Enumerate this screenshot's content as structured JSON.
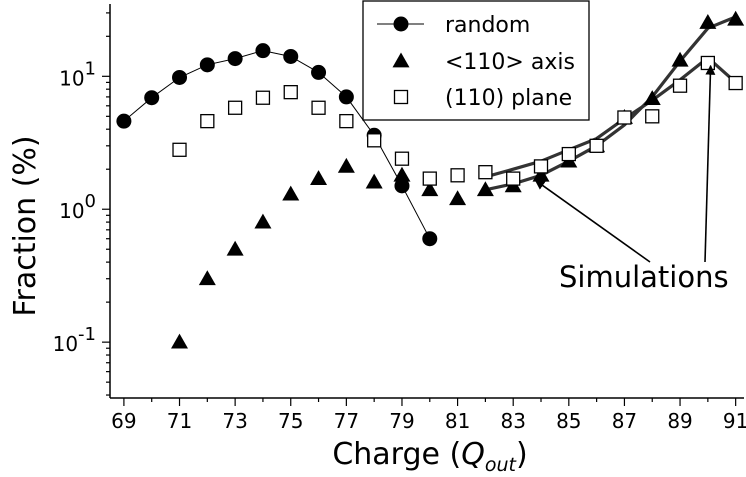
{
  "chart_data": {
    "type": "scatter",
    "title": "",
    "xlabel": "Charge (",
    "xlabel_symbol": "Q",
    "xlabel_subscript": "out",
    "xlabel_close": ")",
    "ylabel": "Fraction (%)",
    "xlim": [
      68.5,
      91.3
    ],
    "ylim": [
      0.038,
      35
    ],
    "y_scale": "log",
    "x_ticks": [
      69,
      71,
      73,
      75,
      77,
      79,
      81,
      83,
      85,
      87,
      89,
      91
    ],
    "x_tick_labels": [
      "69",
      "71",
      "73",
      "75",
      "77",
      "79",
      "81",
      "83",
      "85",
      "87",
      "89",
      "91"
    ],
    "y_ticks": [
      {
        "value": 0.1,
        "base": "10",
        "exp": "-1"
      },
      {
        "value": 1,
        "base": "10",
        "exp": "0"
      },
      {
        "value": 10,
        "base": "10",
        "exp": "1"
      }
    ],
    "grid": false,
    "legend_position": "top-right",
    "series": [
      {
        "name": "random",
        "marker": "circle-filled",
        "connected": true,
        "x": [
          69,
          70,
          71,
          72,
          73,
          74,
          75,
          76,
          77,
          78,
          79,
          80
        ],
        "y": [
          4.6,
          6.9,
          9.8,
          12.2,
          13.6,
          15.6,
          14.1,
          10.7,
          7.0,
          3.6,
          1.5,
          0.6
        ]
      },
      {
        "name": "<110> axis",
        "marker": "triangle-filled",
        "connected": false,
        "x": [
          71,
          72,
          73,
          74,
          75,
          76,
          77,
          78,
          79,
          80,
          81,
          82,
          83,
          84,
          85,
          86,
          87,
          88,
          89,
          90,
          91
        ],
        "y": [
          0.1,
          0.3,
          0.5,
          0.8,
          1.3,
          1.7,
          2.1,
          1.6,
          1.8,
          1.4,
          1.2,
          1.4,
          1.5,
          1.8,
          2.3,
          3.0,
          4.9,
          6.8,
          13.2,
          25.4,
          26.9
        ]
      },
      {
        "name": "(110) plane",
        "marker": "square-open",
        "connected": false,
        "x": [
          71,
          72,
          73,
          74,
          75,
          76,
          77,
          78,
          79,
          80,
          81,
          82,
          83,
          84,
          85,
          86,
          87,
          88,
          89,
          90,
          91
        ],
        "y": [
          2.8,
          4.6,
          5.8,
          6.9,
          7.6,
          5.8,
          4.6,
          3.3,
          2.4,
          1.7,
          1.8,
          1.9,
          1.7,
          2.1,
          2.6,
          3.0,
          4.9,
          5.0,
          8.5,
          12.6,
          8.9
        ]
      }
    ],
    "simulations": [
      {
        "x": [
          82,
          83,
          84,
          85,
          86,
          87,
          88,
          89,
          90,
          91
        ],
        "y": [
          1.4,
          1.55,
          1.8,
          2.3,
          3.0,
          4.3,
          7.0,
          13.0,
          23.0,
          28.0
        ]
      },
      {
        "x": [
          82,
          83,
          84,
          85,
          86,
          87,
          88,
          89,
          90,
          91
        ],
        "y": [
          1.75,
          2.0,
          2.3,
          2.8,
          3.4,
          4.8,
          6.6,
          9.4,
          13.8,
          9.0
        ]
      }
    ],
    "annotation": {
      "text": "Simulations",
      "arrows_to": [
        {
          "x": 83.8,
          "y": 1.65
        },
        {
          "x": 90.1,
          "y": 12.0
        }
      ]
    }
  }
}
